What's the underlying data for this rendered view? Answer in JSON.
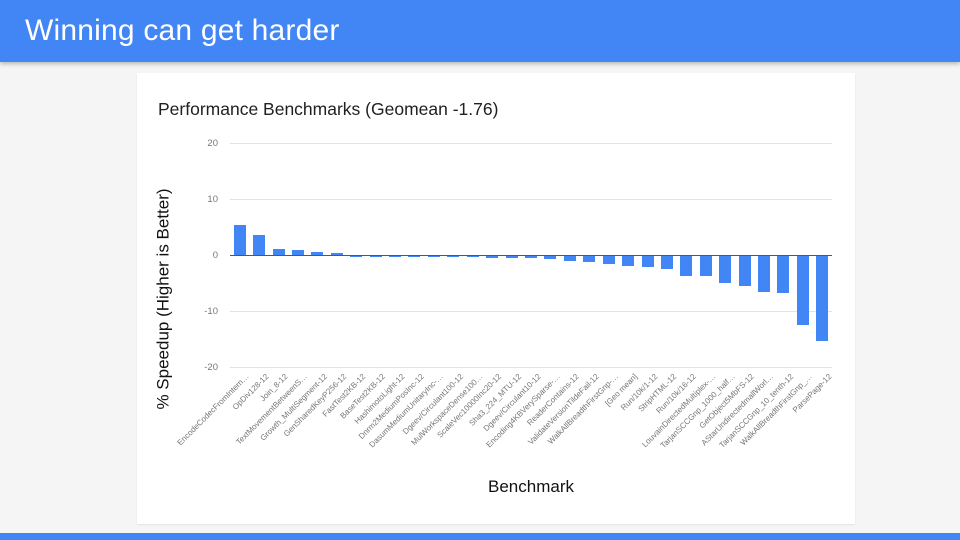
{
  "slide": {
    "title": "Winning can get harder",
    "accent_color": "#4285f4",
    "background_color": "#f5f5f5"
  },
  "chart": {
    "title": "Performance Benchmarks (Geomean -1.76)",
    "y_axis_title": "% Speedup (Higher is Better)",
    "x_axis_title": "Benchmark"
  },
  "chart_data": {
    "type": "bar",
    "title": "Performance Benchmarks (Geomean -1.76)",
    "xlabel": "Benchmark",
    "ylabel": "% Speedup (Higher is Better)",
    "ylim": [
      -20,
      20
    ],
    "yticks": [
      20,
      10,
      0,
      -10,
      -20
    ],
    "grid": true,
    "bar_color": "#4285f4",
    "geomean": -1.76,
    "categories": [
      "EncodeCodecFromIntern…",
      "OpDiv128-12",
      "Join_8-12",
      "TextMovementBetweenS…",
      "Growth_MultiSegment-12",
      "GenSharedKeyP256-12",
      "FastTest2KB-12",
      "BaseTest2KB-12",
      "HashimotoLight-12",
      "Dnrm2MediumPosInc-12",
      "DasumMediumUnitaryInc-…",
      "Dgeev/Circulant100-12",
      "MulWorkspaceDense100…",
      "ScaleVec10000Inc20-12",
      "Sha3_224_MTU-12",
      "Dgeev/Circulant10-12",
      "Encoding4KBVerySparse-…",
      "ReaderContains-12",
      "ValidateVersionTildeFail-12",
      "WalkAllBreadthFirstGnp-…",
      "[Geo mean]",
      "Run/10k/1-12",
      "StripHTML-12",
      "Run/10k/16-12",
      "LouvainDirectedMultiplex-…",
      "TarjanSCCGnp_1000_half…",
      "GetObject5MbFS-12",
      "AStarUndirectedmallWorl…",
      "TarjanSCCGnp_10_tenth-12",
      "WalkAllBreadthFirstGnp_…",
      "ParsePage-12"
    ],
    "values": [
      5.4,
      3.6,
      1.1,
      0.85,
      0.55,
      0.3,
      -0.02,
      -0.05,
      -0.07,
      -0.1,
      -0.12,
      -0.15,
      -0.2,
      -0.28,
      -0.36,
      -0.4,
      -0.55,
      -0.95,
      -1.15,
      -1.5,
      -1.76,
      -1.9,
      -2.4,
      -3.6,
      -3.6,
      -4.8,
      -5.3,
      -6.4,
      -6.6,
      -12.4,
      -15.1
    ]
  }
}
